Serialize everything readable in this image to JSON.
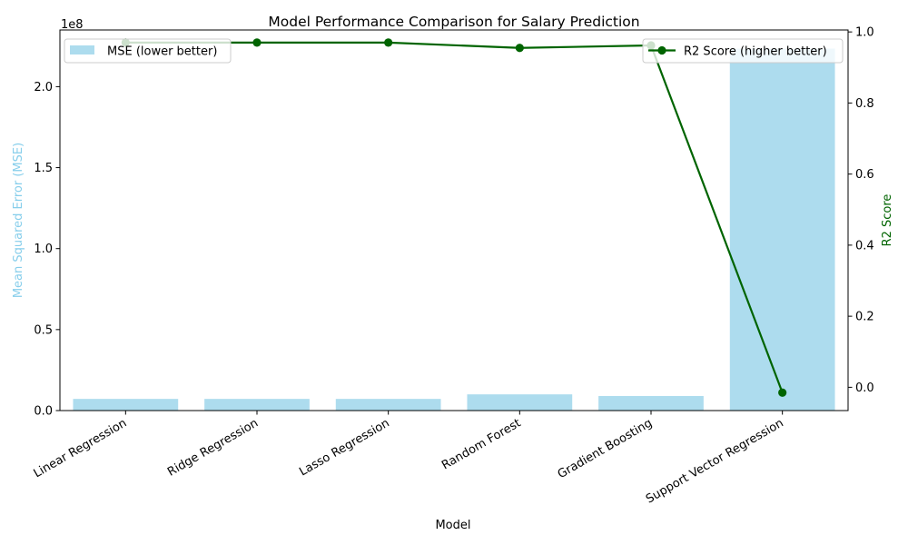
{
  "colors": {
    "bar": "#ADDCEE",
    "bar_axis": "#87CEEB",
    "line": "#006400",
    "axis": "#000000"
  },
  "chart_data": {
    "type": "bar",
    "title": "Model Performance Comparison for Salary Prediction",
    "xlabel": "Model",
    "categories": [
      "Linear Regression",
      "Ridge Regression",
      "Lasso Regression",
      "Random Forest",
      "Gradient Boosting",
      "Support Vector Regression"
    ],
    "series": [
      {
        "name": "MSE (lower better)",
        "type": "bar",
        "axis": "left",
        "values": [
          7200000,
          7200000,
          7200000,
          10000000,
          9000000,
          223500000
        ]
      },
      {
        "name": "R2 Score (higher better)",
        "type": "line",
        "axis": "right",
        "values": [
          0.97,
          0.97,
          0.97,
          0.955,
          0.962,
          -0.015
        ]
      }
    ],
    "y_left": {
      "label": "Mean Squared Error (MSE)",
      "ylim": [
        0,
        235000000
      ],
      "ticks": [
        0,
        50000000,
        100000000,
        150000000,
        200000000
      ],
      "tick_labels": [
        "0.0",
        "0.5",
        "1.0",
        "1.5",
        "2.0"
      ],
      "offset_text": "1e8"
    },
    "y_right": {
      "label": "R2 Score",
      "ylim": [
        -0.0655,
        1.0055
      ],
      "ticks": [
        0.0,
        0.2,
        0.4,
        0.6,
        0.8,
        1.0
      ],
      "tick_labels": [
        "0.0",
        "0.2",
        "0.4",
        "0.6",
        "0.8",
        "1.0"
      ]
    },
    "legend_left": "upper-left",
    "legend_right": "upper-right",
    "grid": false
  }
}
